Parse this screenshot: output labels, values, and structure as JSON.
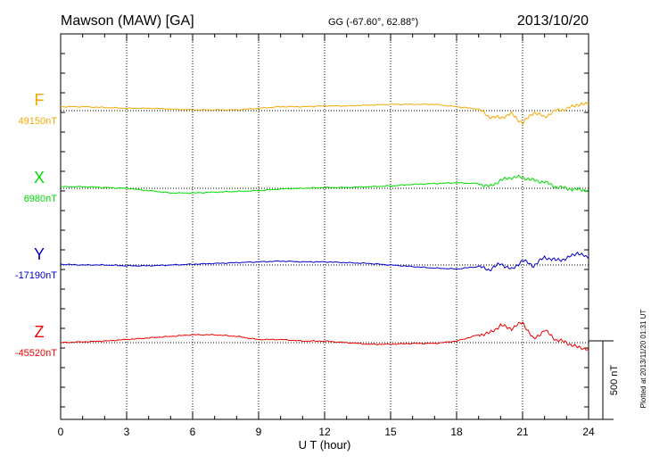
{
  "header": {
    "station": "Mawson (MAW)  [GA]",
    "coords": "GG (-67.60°,  62.88°)",
    "date": "2013/10/20"
  },
  "plotted_note": "Plotted at 2013/11/20 01:31  UT",
  "scale_bar_label": "500 nT",
  "chart_data": {
    "type": "line",
    "title": "Mawson (MAW)  [GA]",
    "xlabel": "U T (hour)",
    "ylabel": "",
    "xlim": [
      0,
      24
    ],
    "x_ticks": [
      0,
      3,
      6,
      9,
      12,
      15,
      18,
      21,
      24
    ],
    "x_tick_labels": [
      "0",
      "3",
      "6",
      "9",
      "12",
      "15",
      "18",
      "21",
      "24"
    ],
    "grid": "vertical dotted at every 3 hours",
    "scale_nT": 500,
    "x": [
      0,
      1,
      2,
      3,
      4,
      5,
      6,
      7,
      8,
      9,
      10,
      11,
      12,
      13,
      14,
      15,
      16,
      17,
      18,
      19,
      19.5,
      20,
      20.5,
      21,
      21.5,
      22,
      22.5,
      23,
      23.5,
      24
    ],
    "series": [
      {
        "name": "F",
        "baseline_label": "49150nT",
        "baseline_nT": 49150,
        "color": "#f5a800",
        "deviation_nT": [
          25,
          25,
          20,
          15,
          15,
          10,
          5,
          5,
          5,
          15,
          25,
          25,
          30,
          30,
          35,
          40,
          40,
          40,
          25,
          10,
          -40,
          -45,
          -20,
          -80,
          -10,
          -40,
          0,
          10,
          40,
          40
        ]
      },
      {
        "name": "X",
        "baseline_label": "6980nT",
        "baseline_nT": 6980,
        "color": "#00dd00",
        "deviation_nT": [
          10,
          10,
          5,
          0,
          -15,
          -30,
          -30,
          -25,
          -20,
          -15,
          -5,
          0,
          5,
          5,
          10,
          15,
          25,
          30,
          35,
          30,
          10,
          50,
          70,
          70,
          50,
          40,
          10,
          0,
          -10,
          -10
        ]
      },
      {
        "name": "Y",
        "baseline_label": "-17190nT",
        "baseline_nT": -17190,
        "color": "#0000cc",
        "deviation_nT": [
          5,
          0,
          0,
          -5,
          -5,
          0,
          5,
          10,
          15,
          20,
          25,
          20,
          20,
          15,
          10,
          0,
          -10,
          -20,
          -25,
          -10,
          -30,
          10,
          -30,
          30,
          -5,
          50,
          30,
          40,
          80,
          40
        ]
      },
      {
        "name": "Z",
        "baseline_label": "-45520nT",
        "baseline_nT": -45520,
        "color": "#ee0000",
        "deviation_nT": [
          0,
          5,
          10,
          20,
          30,
          40,
          50,
          50,
          40,
          20,
          20,
          10,
          10,
          0,
          -10,
          -10,
          -5,
          -5,
          10,
          50,
          60,
          110,
          90,
          130,
          20,
          80,
          20,
          0,
          -30,
          -40
        ]
      }
    ]
  }
}
